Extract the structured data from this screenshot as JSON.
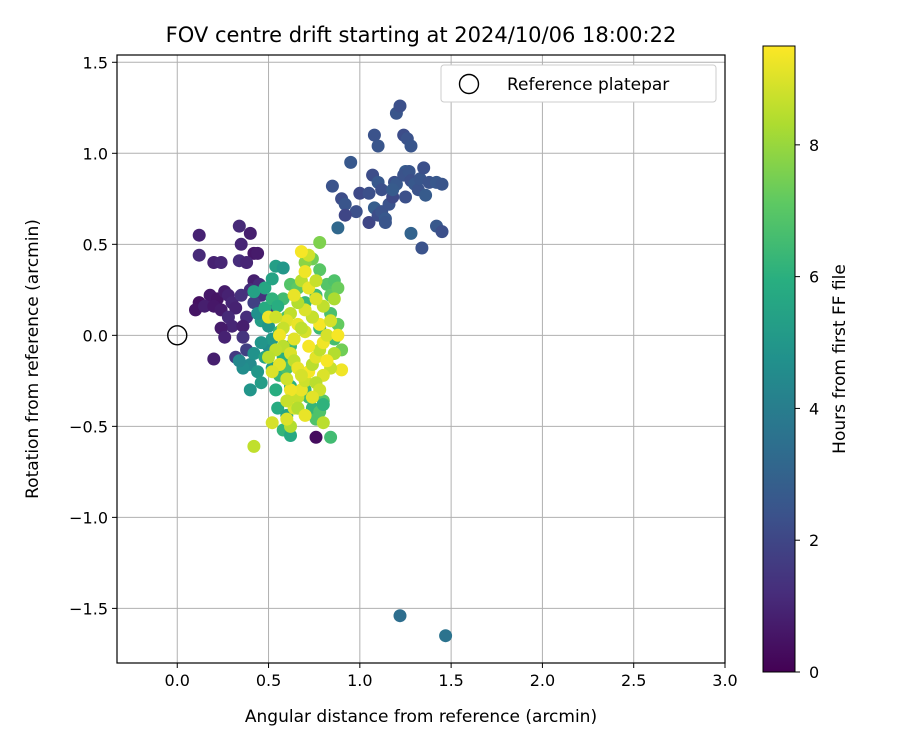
{
  "chart_data": {
    "type": "scatter",
    "title": "FOV centre drift starting at 2024/10/06 18:00:22",
    "xlabel": "Angular distance from reference (arcmin)",
    "ylabel": "Rotation from reference (arcmin)",
    "xlim": [
      -0.33,
      3.0
    ],
    "ylim": [
      -1.8,
      1.54
    ],
    "xticks": [
      0.0,
      0.5,
      1.0,
      1.5,
      2.0,
      2.5,
      3.0
    ],
    "xtick_labels": [
      "0.0",
      "0.5",
      "1.0",
      "1.5",
      "2.0",
      "2.5",
      "3.0"
    ],
    "yticks": [
      -1.5,
      -1.0,
      -0.5,
      0.0,
      0.5,
      1.0,
      1.5
    ],
    "ytick_labels": [
      "−1.5",
      "−1.0",
      "−0.5",
      "0.0",
      "0.5",
      "1.0",
      "1.5"
    ],
    "grid": true,
    "legend": {
      "position": "top-right",
      "entries": [
        "Reference platepar"
      ]
    },
    "reference": {
      "label": "Reference platepar",
      "x": 0.0,
      "y": 0.0
    },
    "colorbar": {
      "label": "Hours from first FF file",
      "min": 0,
      "max": 9.5,
      "ticks": [
        0,
        2,
        4,
        6,
        8
      ],
      "tick_labels": [
        "0",
        "2",
        "4",
        "6",
        "8"
      ],
      "colormap": "viridis",
      "stops": [
        "#440154",
        "#472d7b",
        "#3b528b",
        "#2c728e",
        "#21918c",
        "#28ae80",
        "#5ec962",
        "#addc30",
        "#fde725"
      ]
    },
    "series": [
      {
        "color_by": "hours",
        "points": [
          [
            0.18,
            0.22,
            0.6
          ],
          [
            0.22,
            0.2,
            0.5
          ],
          [
            0.26,
            0.24,
            0.7
          ],
          [
            0.12,
            0.18,
            0.4
          ],
          [
            0.1,
            0.14,
            0.5
          ],
          [
            0.15,
            0.16,
            0.8
          ],
          [
            0.2,
            0.16,
            0.6
          ],
          [
            0.28,
            0.22,
            0.9
          ],
          [
            0.3,
            0.18,
            1.0
          ],
          [
            0.24,
            0.14,
            0.7
          ],
          [
            0.12,
            0.55,
            0.9
          ],
          [
            0.12,
            0.44,
            1.1
          ],
          [
            0.2,
            0.4,
            0.9
          ],
          [
            0.24,
            0.4,
            1.0
          ],
          [
            0.34,
            0.41,
            1.2
          ],
          [
            0.35,
            0.5,
            1.0
          ],
          [
            0.34,
            0.6,
            1.1
          ],
          [
            0.4,
            0.56,
            0.8
          ],
          [
            0.42,
            0.45,
            0.6
          ],
          [
            0.44,
            0.45,
            0.7
          ],
          [
            0.38,
            0.4,
            1.0
          ],
          [
            0.42,
            0.3,
            0.8
          ],
          [
            0.45,
            0.28,
            1.1
          ],
          [
            0.4,
            0.25,
            1.2
          ],
          [
            0.35,
            0.22,
            1.3
          ],
          [
            0.32,
            0.15,
            0.9
          ],
          [
            0.28,
            0.1,
            1.1
          ],
          [
            0.38,
            0.1,
            1.2
          ],
          [
            0.3,
            0.05,
            1.0
          ],
          [
            0.36,
            0.05,
            0.8
          ],
          [
            0.24,
            0.04,
            0.7
          ],
          [
            0.26,
            -0.01,
            0.9
          ],
          [
            0.36,
            -0.01,
            1.4
          ],
          [
            0.2,
            -0.13,
            0.8
          ],
          [
            0.46,
            0.22,
            1.3
          ],
          [
            0.5,
            0.15,
            1.5
          ],
          [
            0.76,
            -0.56,
            0.3
          ],
          [
            0.32,
            -0.12,
            1.6
          ],
          [
            0.38,
            -0.08,
            1.8
          ],
          [
            0.42,
            0.18,
            1.8
          ],
          [
            0.85,
            0.82,
            2.4
          ],
          [
            0.9,
            0.75,
            2.2
          ],
          [
            0.95,
            0.95,
            2.6
          ],
          [
            1.0,
            0.78,
            2.1
          ],
          [
            1.05,
            0.78,
            2.3
          ],
          [
            1.08,
            1.1,
            2.4
          ],
          [
            1.1,
            1.04,
            2.5
          ],
          [
            1.07,
            0.88,
            2.2
          ],
          [
            1.1,
            0.84,
            2.6
          ],
          [
            1.12,
            0.8,
            2.3
          ],
          [
            1.08,
            0.7,
            2.8
          ],
          [
            1.05,
            0.62,
            2.0
          ],
          [
            1.1,
            0.66,
            2.2
          ],
          [
            1.12,
            0.68,
            2.4
          ],
          [
            1.14,
            0.64,
            2.6
          ],
          [
            1.16,
            0.72,
            2.4
          ],
          [
            1.18,
            0.76,
            2.1
          ],
          [
            1.19,
            0.84,
            2.3
          ],
          [
            1.2,
            0.83,
            2.6
          ],
          [
            1.2,
            1.22,
            2.5
          ],
          [
            1.22,
            1.26,
            2.3
          ],
          [
            1.24,
            1.1,
            2.2
          ],
          [
            1.26,
            1.08,
            2.4
          ],
          [
            1.28,
            1.04,
            2.5
          ],
          [
            1.25,
            0.9,
            2.7
          ],
          [
            1.24,
            0.88,
            2.4
          ],
          [
            1.27,
            0.9,
            2.5
          ],
          [
            1.28,
            0.85,
            2.3
          ],
          [
            1.3,
            0.83,
            2.6
          ],
          [
            1.32,
            0.8,
            2.4
          ],
          [
            1.33,
            0.86,
            2.5
          ],
          [
            1.35,
            0.92,
            2.3
          ],
          [
            1.38,
            0.84,
            2.4
          ],
          [
            1.42,
            0.84,
            2.6
          ],
          [
            1.45,
            0.83,
            2.5
          ],
          [
            1.36,
            0.77,
            2.7
          ],
          [
            1.25,
            0.76,
            2.3
          ],
          [
            1.28,
            0.56,
            3.0
          ],
          [
            1.34,
            0.48,
            2.4
          ],
          [
            1.42,
            0.6,
            2.6
          ],
          [
            1.45,
            0.57,
            2.3
          ],
          [
            0.92,
            0.72,
            2.5
          ],
          [
            0.98,
            0.68,
            2.3
          ],
          [
            1.14,
            0.62,
            2.5
          ],
          [
            1.18,
            0.8,
            2.7
          ],
          [
            0.88,
            0.59,
            3.2
          ],
          [
            0.92,
            0.66,
            2.0
          ],
          [
            1.22,
            -1.54,
            3.4
          ],
          [
            1.47,
            -1.65,
            3.6
          ],
          [
            0.4,
            -0.16,
            4.5
          ],
          [
            0.42,
            -0.1,
            4.8
          ],
          [
            0.44,
            -0.2,
            5.0
          ],
          [
            0.46,
            -0.26,
            5.2
          ],
          [
            0.4,
            -0.3,
            4.9
          ],
          [
            0.48,
            -0.12,
            5.5
          ],
          [
            0.5,
            -0.06,
            4.6
          ],
          [
            0.52,
            -0.02,
            5.1
          ],
          [
            0.46,
            0.08,
            5.3
          ],
          [
            0.5,
            0.05,
            5.0
          ],
          [
            0.44,
            0.12,
            4.7
          ],
          [
            0.42,
            0.24,
            5.4
          ],
          [
            0.48,
            0.26,
            5.6
          ],
          [
            0.52,
            0.31,
            5.5
          ],
          [
            0.54,
            0.38,
            5.3
          ],
          [
            0.58,
            0.37,
            5.0
          ],
          [
            0.55,
            -0.4,
            5.8
          ],
          [
            0.58,
            -0.52,
            6.2
          ],
          [
            0.62,
            -0.55,
            5.7
          ],
          [
            0.6,
            -0.44,
            5.5
          ],
          [
            0.54,
            -0.3,
            5.9
          ],
          [
            0.62,
            -0.28,
            6.0
          ],
          [
            0.64,
            -0.36,
            6.1
          ],
          [
            0.66,
            -0.4,
            5.6
          ],
          [
            0.7,
            -0.3,
            6.3
          ],
          [
            0.72,
            -0.34,
            6.6
          ],
          [
            0.74,
            -0.4,
            6.2
          ],
          [
            0.78,
            -0.42,
            6.8
          ],
          [
            0.8,
            -0.36,
            7.0
          ],
          [
            0.84,
            -0.56,
            6.5
          ],
          [
            0.76,
            -0.46,
            6.8
          ],
          [
            0.8,
            -0.38,
            6.1
          ],
          [
            0.82,
            0.28,
            6.9
          ],
          [
            0.84,
            0.22,
            7.1
          ],
          [
            0.86,
            0.3,
            6.8
          ],
          [
            0.88,
            0.26,
            7.3
          ],
          [
            0.84,
            0.12,
            6.7
          ],
          [
            0.88,
            0.06,
            7.2
          ],
          [
            0.86,
            -0.02,
            6.6
          ],
          [
            0.9,
            -0.08,
            7.4
          ],
          [
            0.78,
            0.04,
            6.4
          ],
          [
            0.74,
            0.1,
            6.0
          ],
          [
            0.7,
            0.18,
            6.3
          ],
          [
            0.76,
            0.22,
            6.5
          ],
          [
            0.78,
            0.36,
            7.0
          ],
          [
            0.74,
            0.42,
            7.4
          ],
          [
            0.78,
            0.51,
            7.6
          ],
          [
            0.7,
            0.4,
            7.8
          ],
          [
            0.62,
            0.28,
            6.9
          ],
          [
            0.66,
            0.26,
            7.1
          ],
          [
            0.58,
            0.2,
            6.5
          ],
          [
            0.6,
            0.1,
            6.8
          ],
          [
            0.56,
            0.02,
            6.2
          ],
          [
            0.62,
            -0.06,
            6.4
          ],
          [
            0.58,
            -0.12,
            6.0
          ],
          [
            0.56,
            -0.22,
            6.3
          ],
          [
            0.6,
            -0.18,
            6.7
          ],
          [
            0.36,
            -0.18,
            4.6
          ],
          [
            0.34,
            -0.14,
            4.4
          ],
          [
            0.48,
            0.15,
            5.8
          ],
          [
            0.52,
            0.2,
            6.1
          ],
          [
            0.55,
            0.16,
            5.9
          ],
          [
            0.46,
            -0.04,
            4.9
          ],
          [
            0.52,
            -0.18,
            5.4
          ],
          [
            0.42,
            -0.61,
            8.6
          ],
          [
            0.52,
            -0.48,
            8.9
          ],
          [
            0.62,
            -0.5,
            8.4
          ],
          [
            0.64,
            -0.4,
            9.0
          ],
          [
            0.66,
            -0.34,
            8.7
          ],
          [
            0.68,
            -0.3,
            9.2
          ],
          [
            0.7,
            -0.25,
            8.8
          ],
          [
            0.72,
            -0.2,
            9.4
          ],
          [
            0.74,
            -0.16,
            8.5
          ],
          [
            0.76,
            -0.12,
            9.1
          ],
          [
            0.78,
            -0.08,
            8.6
          ],
          [
            0.8,
            -0.04,
            9.3
          ],
          [
            0.82,
            0.0,
            8.9
          ],
          [
            0.78,
            0.06,
            9.4
          ],
          [
            0.74,
            0.1,
            8.7
          ],
          [
            0.7,
            0.14,
            9.0
          ],
          [
            0.66,
            0.18,
            8.4
          ],
          [
            0.64,
            0.22,
            9.2
          ],
          [
            0.68,
            0.3,
            8.5
          ],
          [
            0.7,
            0.35,
            9.3
          ],
          [
            0.72,
            0.44,
            8.8
          ],
          [
            0.68,
            0.46,
            9.4
          ],
          [
            0.62,
            0.12,
            8.6
          ],
          [
            0.6,
            0.08,
            9.1
          ],
          [
            0.58,
            0.04,
            8.7
          ],
          [
            0.56,
            0.0,
            9.3
          ],
          [
            0.58,
            -0.06,
            8.5
          ],
          [
            0.62,
            -0.1,
            9.0
          ],
          [
            0.64,
            -0.14,
            8.6
          ],
          [
            0.66,
            -0.18,
            9.2
          ],
          [
            0.68,
            -0.22,
            8.9
          ],
          [
            0.9,
            -0.19,
            9.3
          ],
          [
            0.86,
            -0.1,
            8.4
          ],
          [
            0.84,
            -0.18,
            8.7
          ],
          [
            0.8,
            -0.22,
            9.0
          ],
          [
            0.76,
            -0.26,
            8.5
          ],
          [
            0.62,
            -0.3,
            9.3
          ],
          [
            0.6,
            -0.24,
            8.8
          ],
          [
            0.56,
            -0.16,
            9.1
          ],
          [
            0.54,
            -0.08,
            8.6
          ],
          [
            0.72,
            -0.06,
            9.4
          ],
          [
            0.7,
            0.02,
            8.9
          ],
          [
            0.66,
            0.06,
            9.2
          ],
          [
            0.8,
            0.16,
            8.6
          ],
          [
            0.76,
            0.2,
            9.0
          ],
          [
            0.86,
            0.2,
            8.3
          ],
          [
            0.88,
            0.0,
            9.4
          ],
          [
            0.78,
            -0.3,
            8.8
          ],
          [
            0.74,
            -0.34,
            9.1
          ],
          [
            0.66,
            -0.4,
            8.4
          ],
          [
            0.7,
            -0.44,
            9.2
          ],
          [
            0.6,
            -0.36,
            8.7
          ],
          [
            0.52,
            -0.2,
            9.0
          ],
          [
            0.5,
            -0.12,
            8.5
          ],
          [
            0.5,
            0.1,
            9.3
          ],
          [
            0.54,
            0.1,
            8.8
          ],
          [
            0.82,
            -0.14,
            9.4
          ],
          [
            0.84,
            0.08,
            8.9
          ],
          [
            0.64,
            -0.02,
            9.1
          ],
          [
            0.68,
            0.04,
            8.6
          ],
          [
            0.72,
            0.26,
            9.2
          ],
          [
            0.76,
            0.3,
            8.7
          ],
          [
            0.8,
            -0.48,
            8.5
          ],
          [
            0.6,
            -0.46,
            9.0
          ]
        ]
      }
    ]
  }
}
